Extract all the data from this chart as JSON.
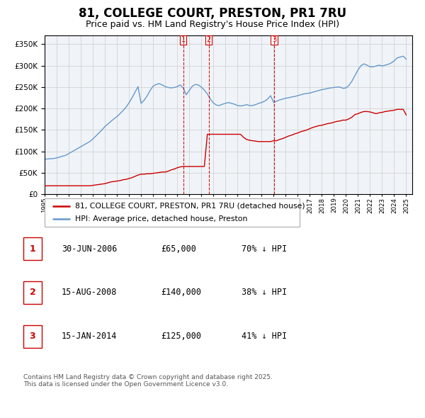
{
  "title": "81, COLLEGE COURT, PRESTON, PR1 7RU",
  "subtitle": "Price paid vs. HM Land Registry's House Price Index (HPI)",
  "title_fontsize": 12,
  "subtitle_fontsize": 9,
  "background_color": "#ffffff",
  "grid_color": "#cccccc",
  "hpi_color": "#6699cc",
  "price_color": "#cc0000",
  "ylim": [
    0,
    370000
  ],
  "yticks": [
    0,
    50000,
    100000,
    150000,
    200000,
    250000,
    300000,
    350000
  ],
  "xlim_start": 1995.0,
  "xlim_end": 2025.5,
  "sale_dates": [
    2006.5,
    2008.625,
    2014.04
  ],
  "sale_prices": [
    65000,
    140000,
    125000
  ],
  "legend_entries": [
    "81, COLLEGE COURT, PRESTON, PR1 7RU (detached house)",
    "HPI: Average price, detached house, Preston"
  ],
  "table_entries": [
    {
      "num": "1",
      "date": "30-JUN-2006",
      "price": "£65,000",
      "pct": "70% ↓ HPI"
    },
    {
      "num": "2",
      "date": "15-AUG-2008",
      "price": "£140,000",
      "pct": "38% ↓ HPI"
    },
    {
      "num": "3",
      "date": "15-JAN-2014",
      "price": "£125,000",
      "pct": "41% ↓ HPI"
    }
  ],
  "footer": "Contains HM Land Registry data © Crown copyright and database right 2025.\nThis data is licensed under the Open Government Licence v3.0.",
  "hpi_x": [
    1995.0,
    1995.25,
    1995.5,
    1995.75,
    1996.0,
    1996.25,
    1996.5,
    1996.75,
    1997.0,
    1997.25,
    1997.5,
    1997.75,
    1998.0,
    1998.25,
    1998.5,
    1998.75,
    1999.0,
    1999.25,
    1999.5,
    1999.75,
    2000.0,
    2000.25,
    2000.5,
    2000.75,
    2001.0,
    2001.25,
    2001.5,
    2001.75,
    2002.0,
    2002.25,
    2002.5,
    2002.75,
    2003.0,
    2003.25,
    2003.5,
    2003.75,
    2004.0,
    2004.25,
    2004.5,
    2004.75,
    2005.0,
    2005.25,
    2005.5,
    2005.75,
    2006.0,
    2006.25,
    2006.5,
    2006.75,
    2007.0,
    2007.25,
    2007.5,
    2007.75,
    2008.0,
    2008.25,
    2008.5,
    2008.75,
    2009.0,
    2009.25,
    2009.5,
    2009.75,
    2010.0,
    2010.25,
    2010.5,
    2010.75,
    2011.0,
    2011.25,
    2011.5,
    2011.75,
    2012.0,
    2012.25,
    2012.5,
    2012.75,
    2013.0,
    2013.25,
    2013.5,
    2013.75,
    2014.0,
    2014.25,
    2014.5,
    2014.75,
    2015.0,
    2015.25,
    2015.5,
    2015.75,
    2016.0,
    2016.25,
    2016.5,
    2016.75,
    2017.0,
    2017.25,
    2017.5,
    2017.75,
    2018.0,
    2018.25,
    2018.5,
    2018.75,
    2019.0,
    2019.25,
    2019.5,
    2019.75,
    2020.0,
    2020.25,
    2020.5,
    2020.75,
    2021.0,
    2021.25,
    2021.5,
    2021.75,
    2022.0,
    2022.25,
    2022.5,
    2022.75,
    2023.0,
    2023.25,
    2023.5,
    2023.75,
    2024.0,
    2024.25,
    2024.5,
    2024.75,
    2025.0
  ],
  "hpi_y": [
    82000,
    82500,
    83000,
    83500,
    85000,
    87000,
    89000,
    91000,
    95000,
    99000,
    103000,
    107000,
    111000,
    115000,
    119000,
    123000,
    129000,
    136000,
    143000,
    150000,
    158000,
    164000,
    170000,
    176000,
    181000,
    188000,
    195000,
    203000,
    213000,
    225000,
    238000,
    251000,
    212000,
    219000,
    229000,
    242000,
    252000,
    256000,
    258000,
    255000,
    251000,
    249000,
    248000,
    249000,
    251000,
    255000,
    248000,
    232000,
    242000,
    252000,
    256000,
    255000,
    250000,
    243000,
    234000,
    222000,
    213000,
    208000,
    207000,
    210000,
    212000,
    214000,
    212000,
    210000,
    207000,
    206000,
    207000,
    209000,
    207000,
    207000,
    209000,
    212000,
    214000,
    217000,
    222000,
    230000,
    214000,
    217000,
    220000,
    222000,
    224000,
    225000,
    227000,
    228000,
    230000,
    232000,
    234000,
    235000,
    236000,
    238000,
    240000,
    242000,
    244000,
    245000,
    247000,
    248000,
    249000,
    250000,
    250000,
    247000,
    248000,
    254000,
    264000,
    277000,
    290000,
    300000,
    304000,
    301000,
    297000,
    297000,
    299000,
    301000,
    299000,
    301000,
    303000,
    306000,
    311000,
    318000,
    320000,
    322000,
    315000
  ],
  "price_x": [
    1995.0,
    1995.25,
    1995.5,
    1995.75,
    1996.0,
    1996.25,
    1996.5,
    1996.75,
    1997.0,
    1997.25,
    1997.5,
    1997.75,
    1998.0,
    1998.25,
    1998.5,
    1998.75,
    1999.0,
    1999.25,
    1999.5,
    1999.75,
    2000.0,
    2000.25,
    2000.5,
    2000.75,
    2001.0,
    2001.25,
    2001.5,
    2001.75,
    2002.0,
    2002.25,
    2002.5,
    2002.75,
    2003.0,
    2003.25,
    2003.5,
    2003.75,
    2004.0,
    2004.25,
    2004.5,
    2004.75,
    2005.0,
    2005.25,
    2005.5,
    2005.75,
    2006.0,
    2006.25,
    2006.5,
    2006.75,
    2007.0,
    2007.25,
    2007.5,
    2007.75,
    2008.0,
    2008.25,
    2008.5,
    2008.75,
    2009.0,
    2009.25,
    2009.5,
    2009.75,
    2010.0,
    2010.25,
    2010.5,
    2010.75,
    2011.0,
    2011.25,
    2011.5,
    2011.75,
    2012.0,
    2012.25,
    2012.5,
    2012.75,
    2013.0,
    2013.25,
    2013.5,
    2013.75,
    2014.0,
    2014.25,
    2014.5,
    2014.75,
    2015.0,
    2015.25,
    2015.5,
    2015.75,
    2016.0,
    2016.25,
    2016.5,
    2016.75,
    2017.0,
    2017.25,
    2017.5,
    2017.75,
    2018.0,
    2018.25,
    2018.5,
    2018.75,
    2019.0,
    2019.25,
    2019.5,
    2019.75,
    2020.0,
    2020.25,
    2020.5,
    2020.75,
    2021.0,
    2021.25,
    2021.5,
    2021.75,
    2022.0,
    2022.25,
    2022.5,
    2022.75,
    2023.0,
    2023.25,
    2023.5,
    2023.75,
    2024.0,
    2024.25,
    2024.5,
    2024.75,
    2025.0
  ],
  "price_y": [
    20000,
    20000,
    20000,
    20000,
    20000,
    20000,
    20000,
    20000,
    20000,
    20000,
    20000,
    20000,
    20000,
    20000,
    20000,
    20000,
    21000,
    22000,
    23000,
    24000,
    25000,
    27000,
    29000,
    30000,
    31000,
    32000,
    34000,
    35000,
    37000,
    39000,
    42000,
    45000,
    47000,
    47000,
    48000,
    48000,
    49000,
    50000,
    51000,
    52000,
    52000,
    54000,
    57000,
    59000,
    62000,
    64000,
    65000,
    65000,
    65000,
    65000,
    65000,
    65000,
    65000,
    65000,
    140000,
    140000,
    140000,
    140000,
    140000,
    140000,
    140000,
    140000,
    140000,
    140000,
    140000,
    140000,
    133000,
    128000,
    126000,
    125000,
    124000,
    123000,
    123000,
    123000,
    123000,
    123000,
    125000,
    125000,
    128000,
    130000,
    133000,
    136000,
    138000,
    141000,
    143000,
    146000,
    148000,
    150000,
    153000,
    156000,
    158000,
    160000,
    161000,
    163000,
    165000,
    166000,
    168000,
    170000,
    171000,
    173000,
    173000,
    176000,
    180000,
    186000,
    188000,
    191000,
    193000,
    193000,
    192000,
    190000,
    188000,
    190000,
    191000,
    193000,
    194000,
    195000,
    196000,
    198000,
    198000,
    198000,
    185000
  ]
}
